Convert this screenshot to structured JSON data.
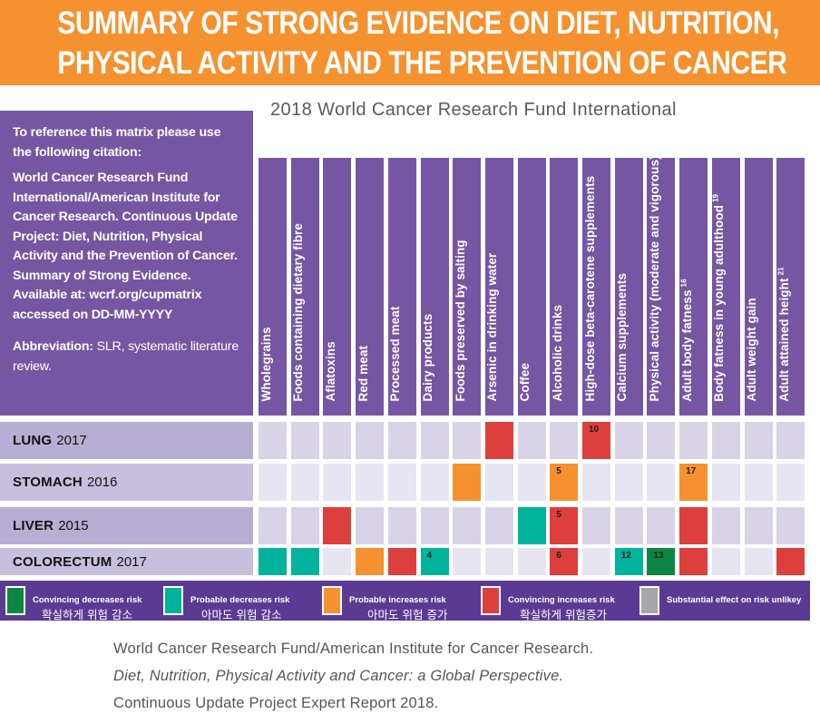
{
  "banner": {
    "line1": "SUMMARY OF STRONG EVIDENCE ON DIET, NUTRITION,",
    "line2": "PHYSICAL ACTIVITY AND THE PREVENTION OF CANCER"
  },
  "subtitle": "2018 World Cancer Research Fund International",
  "citation": {
    "intro": "To reference this matrix please use the following citation:",
    "body": "World Cancer Research Fund International/American Institute for Cancer Research. Continuous Update Project: Diet, Nutrition, Physical Activity and the Prevention of Cancer. Summary of Strong Evidence. Available at: wcrf.org/cupmatrix accessed on DD-MM-YYYY",
    "abbr_label": "Abbreviation:",
    "abbr_text": " SLR, systematic literature review."
  },
  "colors": {
    "convincing_decrease": "#0b8743",
    "probable_decrease": "#00b39c",
    "probable_increase": "#f5922f",
    "convincing_increase": "#dc3f3c",
    "unlikely": "#a7a7ab",
    "empty_dark": "#d8d3e7",
    "empty_light": "#e8e5f2",
    "header": "#7656a2",
    "label_dark": "#b8aed3",
    "label_light": "#c8bfde"
  },
  "columns": [
    {
      "label": "Wholegrains",
      "sup": ""
    },
    {
      "label": "Foods containing dietary fibre",
      "sup": ""
    },
    {
      "label": "Aflatoxins",
      "sup": ""
    },
    {
      "label": "Red meat",
      "sup": ""
    },
    {
      "label": "Processed meat",
      "sup": ""
    },
    {
      "label": "Dairy products",
      "sup": ""
    },
    {
      "label": "Foods preserved by salting",
      "sup": ""
    },
    {
      "label": "Arsenic in drinking water",
      "sup": ""
    },
    {
      "label": "Coffee",
      "sup": ""
    },
    {
      "label": "Alcoholic drinks",
      "sup": ""
    },
    {
      "label": "High-dose beta-carotene supplements",
      "sup": ""
    },
    {
      "label": "Calcium supplements",
      "sup": ""
    },
    {
      "label": "Physical activity (moderate and vigorous)",
      "sup": ""
    },
    {
      "label": "Adult body fatness",
      "sup": "16"
    },
    {
      "label": "Body fatness in young adulthood",
      "sup": "19"
    },
    {
      "label": "Adult weight gain",
      "sup": ""
    },
    {
      "label": "Adult attained height",
      "sup": "21"
    }
  ],
  "rows": [
    {
      "cancer": "LUNG",
      "year": "2017",
      "cells": [
        {
          "col": 7,
          "status": "convincing_increase",
          "note": ""
        },
        {
          "col": 10,
          "status": "convincing_increase",
          "note": "10"
        }
      ]
    },
    {
      "cancer": "STOMACH",
      "year": "2016",
      "cells": [
        {
          "col": 6,
          "status": "probable_increase",
          "note": ""
        },
        {
          "col": 9,
          "status": "probable_increase",
          "note": "5"
        },
        {
          "col": 13,
          "status": "probable_increase",
          "note": "17"
        }
      ]
    },
    {
      "cancer": "LIVER",
      "year": "2015",
      "cells": [
        {
          "col": 2,
          "status": "convincing_increase",
          "note": ""
        },
        {
          "col": 8,
          "status": "probable_decrease",
          "note": ""
        },
        {
          "col": 9,
          "status": "convincing_increase",
          "note": "5"
        },
        {
          "col": 13,
          "status": "convincing_increase",
          "note": ""
        }
      ]
    },
    {
      "cancer": "COLORECTUM",
      "year": "2017",
      "cells": [
        {
          "col": 0,
          "status": "probable_decrease",
          "note": ""
        },
        {
          "col": 1,
          "status": "probable_decrease",
          "note": ""
        },
        {
          "col": 3,
          "status": "probable_increase",
          "note": ""
        },
        {
          "col": 4,
          "status": "convincing_increase",
          "note": ""
        },
        {
          "col": 5,
          "status": "probable_decrease",
          "note": "4"
        },
        {
          "col": 9,
          "status": "convincing_increase",
          "note": "6"
        },
        {
          "col": 11,
          "status": "probable_decrease",
          "note": "12"
        },
        {
          "col": 12,
          "status": "convincing_decrease",
          "note": "13"
        },
        {
          "col": 13,
          "status": "convincing_increase",
          "note": ""
        },
        {
          "col": 16,
          "status": "convincing_increase",
          "note": ""
        }
      ]
    }
  ],
  "legend": [
    {
      "status": "convincing_decrease",
      "en": "Convincing decreases risk",
      "ko": "확실하게 위험 감소"
    },
    {
      "status": "probable_decrease",
      "en": "Probable decreases risk",
      "ko": "아마도 위험 감소"
    },
    {
      "status": "probable_increase",
      "en": "Probable increases risk",
      "ko": "아마도 위험 증가"
    },
    {
      "status": "convincing_increase",
      "en": "Convincing increases risk",
      "ko": "확실하게 위험증가"
    },
    {
      "status": "unlikely",
      "en": "Substantial effect on risk unlikey",
      "ko": ""
    }
  ],
  "reference": {
    "line1": "World Cancer Research Fund/American Institute for Cancer Research.",
    "line2": "Diet, Nutrition, Physical Activity and Cancer: a Global Perspective.",
    "line3": "Continuous Update Project Expert Report 2018."
  }
}
